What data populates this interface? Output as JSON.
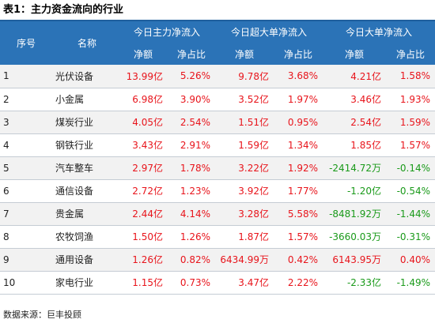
{
  "title": "表1：主力资金流向的行业",
  "header": {
    "index": "序号",
    "name": "名称",
    "groups": [
      "今日主力净流入",
      "今日超大单净流入",
      "今日大单净流入"
    ],
    "sub": [
      "净额",
      "净占比",
      "净额",
      "净占比",
      "净额",
      "净占比"
    ]
  },
  "colors": {
    "header_bg": "#2b73b7",
    "positive": "#e8141b",
    "negative": "#1a9a1a"
  },
  "rows": [
    {
      "idx": "1",
      "name": "光伏设备",
      "vals": [
        "13.99亿",
        "5.26%",
        "9.78亿",
        "3.68%",
        "4.21亿",
        "1.58%"
      ],
      "signs": [
        "pos",
        "pos",
        "pos",
        "pos",
        "pos",
        "pos"
      ]
    },
    {
      "idx": "2",
      "name": "小金属",
      "vals": [
        "6.98亿",
        "3.90%",
        "3.52亿",
        "1.97%",
        "3.46亿",
        "1.93%"
      ],
      "signs": [
        "pos",
        "pos",
        "pos",
        "pos",
        "pos",
        "pos"
      ]
    },
    {
      "idx": "3",
      "name": "煤炭行业",
      "vals": [
        "4.05亿",
        "2.54%",
        "1.51亿",
        "0.95%",
        "2.54亿",
        "1.59%"
      ],
      "signs": [
        "pos",
        "pos",
        "pos",
        "pos",
        "pos",
        "pos"
      ]
    },
    {
      "idx": "4",
      "name": "钢铁行业",
      "vals": [
        "3.43亿",
        "2.91%",
        "1.59亿",
        "1.34%",
        "1.85亿",
        "1.57%"
      ],
      "signs": [
        "pos",
        "pos",
        "pos",
        "pos",
        "pos",
        "pos"
      ]
    },
    {
      "idx": "5",
      "name": "汽车整车",
      "vals": [
        "2.97亿",
        "1.78%",
        "3.22亿",
        "1.92%",
        "-2414.72万",
        "-0.14%"
      ],
      "signs": [
        "pos",
        "pos",
        "pos",
        "pos",
        "neg",
        "neg"
      ]
    },
    {
      "idx": "6",
      "name": "通信设备",
      "vals": [
        "2.72亿",
        "1.23%",
        "3.92亿",
        "1.77%",
        "-1.20亿",
        "-0.54%"
      ],
      "signs": [
        "pos",
        "pos",
        "pos",
        "pos",
        "neg",
        "neg"
      ]
    },
    {
      "idx": "7",
      "name": "贵金属",
      "vals": [
        "2.44亿",
        "4.14%",
        "3.28亿",
        "5.58%",
        "-8481.92万",
        "-1.44%"
      ],
      "signs": [
        "pos",
        "pos",
        "pos",
        "pos",
        "neg",
        "neg"
      ]
    },
    {
      "idx": "8",
      "name": "农牧饲渔",
      "vals": [
        "1.50亿",
        "1.26%",
        "1.87亿",
        "1.57%",
        "-3660.03万",
        "-0.31%"
      ],
      "signs": [
        "pos",
        "pos",
        "pos",
        "pos",
        "neg",
        "neg"
      ]
    },
    {
      "idx": "9",
      "name": "通用设备",
      "vals": [
        "1.26亿",
        "0.82%",
        "6434.99万",
        "0.42%",
        "6143.95万",
        "0.40%"
      ],
      "signs": [
        "pos",
        "pos",
        "pos",
        "pos",
        "pos",
        "pos"
      ]
    },
    {
      "idx": "10",
      "name": "家电行业",
      "vals": [
        "1.15亿",
        "0.73%",
        "3.47亿",
        "2.22%",
        "-2.33亿",
        "-1.49%"
      ],
      "signs": [
        "pos",
        "pos",
        "pos",
        "pos",
        "neg",
        "neg"
      ]
    }
  ],
  "source": "数据来源：巨丰投顾"
}
